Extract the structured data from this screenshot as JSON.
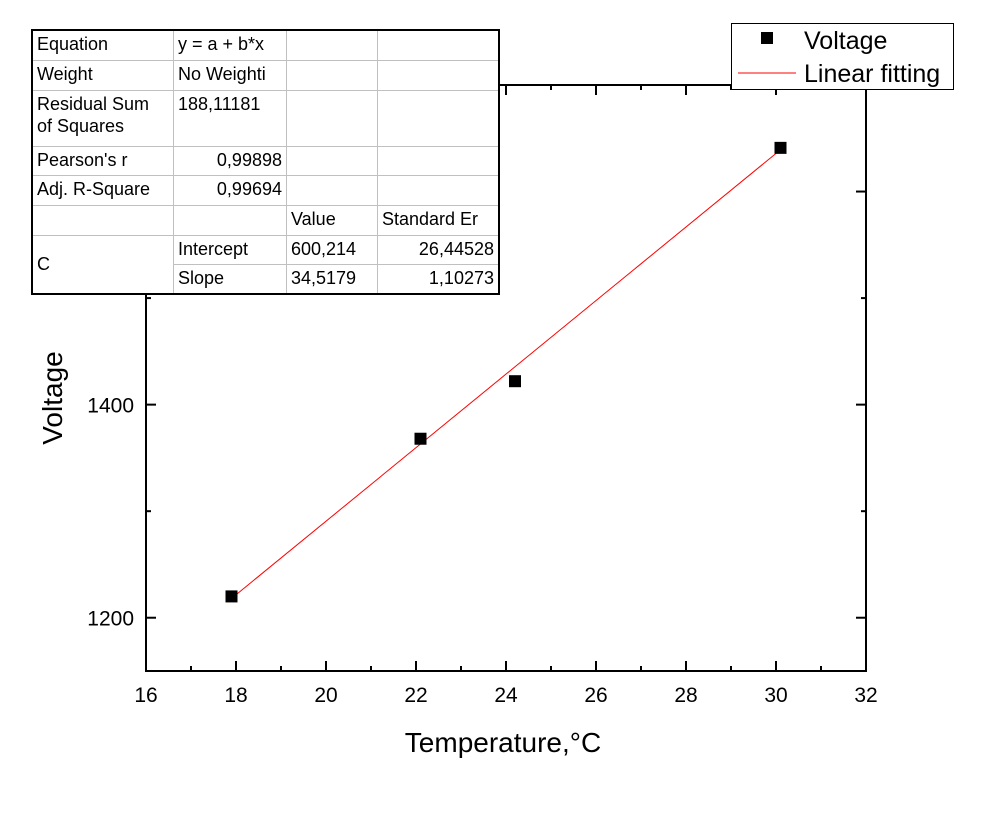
{
  "chart_data": {
    "type": "scatter",
    "xlabel": "Temperature,°C",
    "ylabel": "Voltage",
    "xlim": [
      16,
      32
    ],
    "ylim": [
      1150,
      1700
    ],
    "x_ticks": [
      16,
      18,
      20,
      22,
      24,
      26,
      28,
      30,
      32
    ],
    "y_ticks": [
      1200,
      1400
    ],
    "grid": false,
    "legend_position": "top-right",
    "series": [
      {
        "name": "Voltage",
        "type": "scatter",
        "color": "#000000",
        "marker": "square",
        "x": [
          17.9,
          22.1,
          24.2,
          30.1
        ],
        "y": [
          1220,
          1368,
          1422,
          1641
        ]
      },
      {
        "name": "Linear fitting",
        "type": "line",
        "color": "#ff0000",
        "intercept": 600.214,
        "slope": 34.5179,
        "x_range": [
          17.9,
          30.1
        ]
      }
    ],
    "stats_table": {
      "rows": [
        [
          "Equation",
          "y = a + b*x",
          "",
          ""
        ],
        [
          "Weight",
          "No Weighti",
          "",
          ""
        ],
        [
          "Residual Sum of Squares",
          "188,11181",
          "",
          ""
        ],
        [
          "Pearson's r",
          "0,99898",
          "",
          ""
        ],
        [
          "Adj. R-Square",
          "0,99694",
          "",
          ""
        ],
        [
          "",
          "",
          "Value",
          "Standard Er"
        ],
        [
          "C",
          "Intercept",
          "600,214",
          "26,44528"
        ],
        [
          "",
          "Slope",
          "34,5179",
          "1,10273"
        ]
      ]
    }
  }
}
